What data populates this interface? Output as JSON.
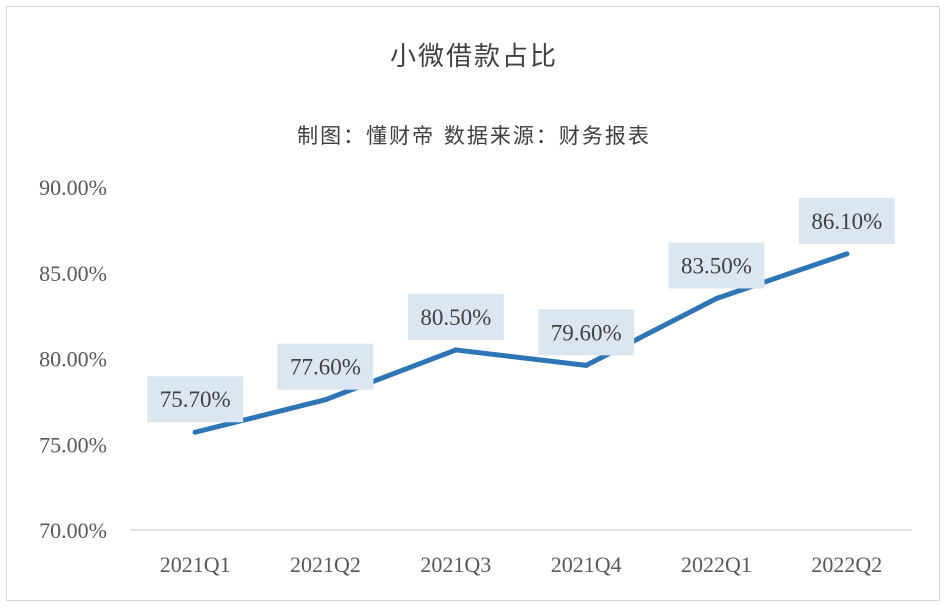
{
  "chart_data": {
    "type": "line",
    "title": "小微借款占比",
    "subtitle": "制图：懂财帝 数据来源：财务报表",
    "categories": [
      "2021Q1",
      "2021Q2",
      "2021Q3",
      "2021Q4",
      "2022Q1",
      "2022Q2"
    ],
    "series": [
      {
        "values": [
          75.7,
          77.6,
          80.5,
          79.6,
          83.5,
          86.1
        ],
        "labels": [
          "75.70%",
          "77.60%",
          "80.50%",
          "79.60%",
          "83.50%",
          "86.10%"
        ],
        "color": "#2e75b6"
      }
    ],
    "ylim": [
      70,
      90
    ],
    "yticks": [
      70,
      75,
      80,
      85,
      90
    ],
    "ytick_labels": [
      "70.00%",
      "75.00%",
      "80.00%",
      "85.00%",
      "90.00%"
    ],
    "grid": false,
    "legend": "none",
    "label_bg_color": "#dce6f2",
    "axis_color": "#d9d9d9"
  }
}
